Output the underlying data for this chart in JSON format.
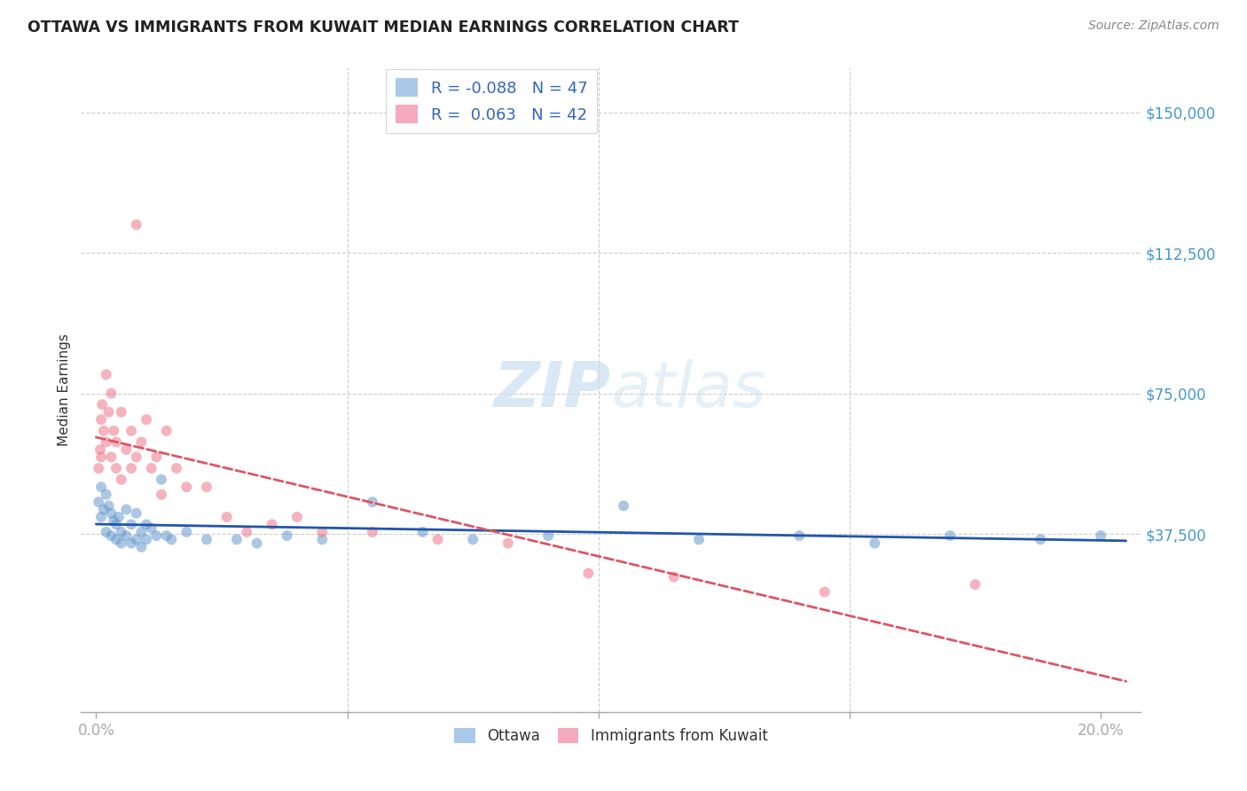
{
  "title": "OTTAWA VS IMMIGRANTS FROM KUWAIT MEDIAN EARNINGS CORRELATION CHART",
  "source": "Source: ZipAtlas.com",
  "ylabel": "Median Earnings",
  "ytick_vals": [
    37500,
    75000,
    112500,
    150000
  ],
  "ytick_labels": [
    "$37,500",
    "$75,000",
    "$112,500",
    "$150,000"
  ],
  "xtick_vals": [
    0.0,
    0.05,
    0.1,
    0.15,
    0.2
  ],
  "xtick_labels": [
    "0.0%",
    "",
    "",
    "",
    "20.0%"
  ],
  "xlim": [
    -0.003,
    0.208
  ],
  "ylim": [
    -10000,
    162000
  ],
  "watermark": "ZIPatlas",
  "ottawa_color": "#6699cc",
  "kuwait_color": "#ee7788",
  "ottawa_line_color": "#2255aa",
  "kuwait_line_color": "#dd5566",
  "dot_alpha": 0.55,
  "dot_size": 75,
  "grid_color": "#cccccc",
  "title_color": "#222222",
  "source_color": "#888888",
  "ytick_color": "#4499cc",
  "xtick_color": "#4499cc",
  "background_color": "#ffffff",
  "legend_R_color": "#3366bb",
  "legend_N_color": "#3366bb",
  "ottawa_x": [
    0.0005,
    0.001,
    0.001,
    0.0015,
    0.002,
    0.002,
    0.0025,
    0.003,
    0.003,
    0.0035,
    0.004,
    0.004,
    0.0045,
    0.005,
    0.005,
    0.006,
    0.006,
    0.007,
    0.007,
    0.008,
    0.008,
    0.009,
    0.009,
    0.01,
    0.01,
    0.011,
    0.012,
    0.013,
    0.014,
    0.015,
    0.018,
    0.022,
    0.028,
    0.032,
    0.038,
    0.045,
    0.055,
    0.065,
    0.075,
    0.09,
    0.105,
    0.12,
    0.14,
    0.155,
    0.17,
    0.188,
    0.2
  ],
  "ottawa_y": [
    46000,
    50000,
    42000,
    44000,
    48000,
    38000,
    45000,
    43000,
    37000,
    41000,
    40000,
    36000,
    42000,
    38000,
    35000,
    44000,
    37000,
    40000,
    35000,
    43000,
    36000,
    38000,
    34000,
    40000,
    36000,
    39000,
    37000,
    52000,
    37000,
    36000,
    38000,
    36000,
    36000,
    35000,
    37000,
    36000,
    46000,
    38000,
    36000,
    37000,
    45000,
    36000,
    37000,
    35000,
    37000,
    36000,
    37000
  ],
  "kuwait_x": [
    0.0005,
    0.0008,
    0.001,
    0.001,
    0.0012,
    0.0015,
    0.002,
    0.002,
    0.0025,
    0.003,
    0.003,
    0.0035,
    0.004,
    0.004,
    0.005,
    0.005,
    0.006,
    0.007,
    0.007,
    0.008,
    0.008,
    0.009,
    0.01,
    0.011,
    0.012,
    0.013,
    0.014,
    0.016,
    0.018,
    0.022,
    0.026,
    0.03,
    0.035,
    0.04,
    0.045,
    0.055,
    0.068,
    0.082,
    0.098,
    0.115,
    0.145,
    0.175
  ],
  "kuwait_y": [
    55000,
    60000,
    68000,
    58000,
    72000,
    65000,
    80000,
    62000,
    70000,
    75000,
    58000,
    65000,
    62000,
    55000,
    70000,
    52000,
    60000,
    65000,
    55000,
    58000,
    120000,
    62000,
    68000,
    55000,
    58000,
    48000,
    65000,
    55000,
    50000,
    50000,
    42000,
    38000,
    40000,
    42000,
    38000,
    38000,
    36000,
    35000,
    27000,
    26000,
    22000,
    24000
  ]
}
